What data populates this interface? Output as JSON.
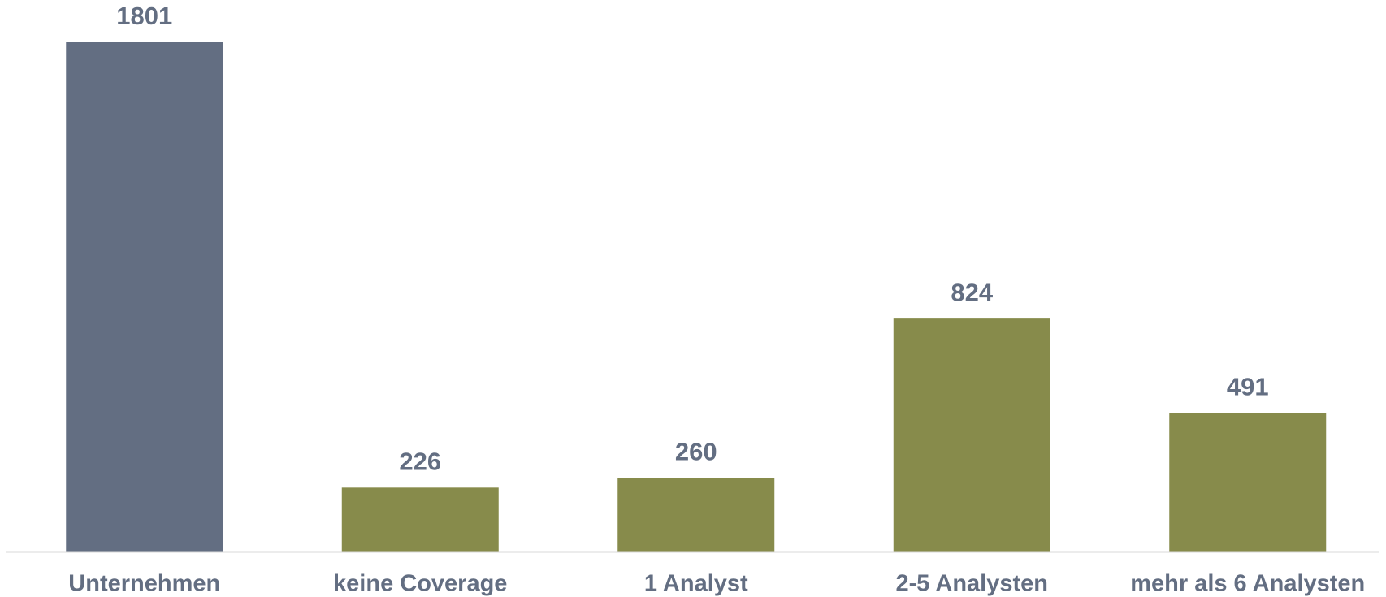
{
  "chart_data": {
    "type": "bar",
    "categories": [
      "Unternehmen",
      "keine Coverage",
      "1 Analyst",
      "2-5 Analysten",
      "mehr als 6 Analysten"
    ],
    "values": [
      1801,
      226,
      260,
      824,
      491
    ],
    "colors": [
      "#636e82",
      "#878b4b",
      "#878b4b",
      "#878b4b",
      "#878b4b"
    ]
  }
}
